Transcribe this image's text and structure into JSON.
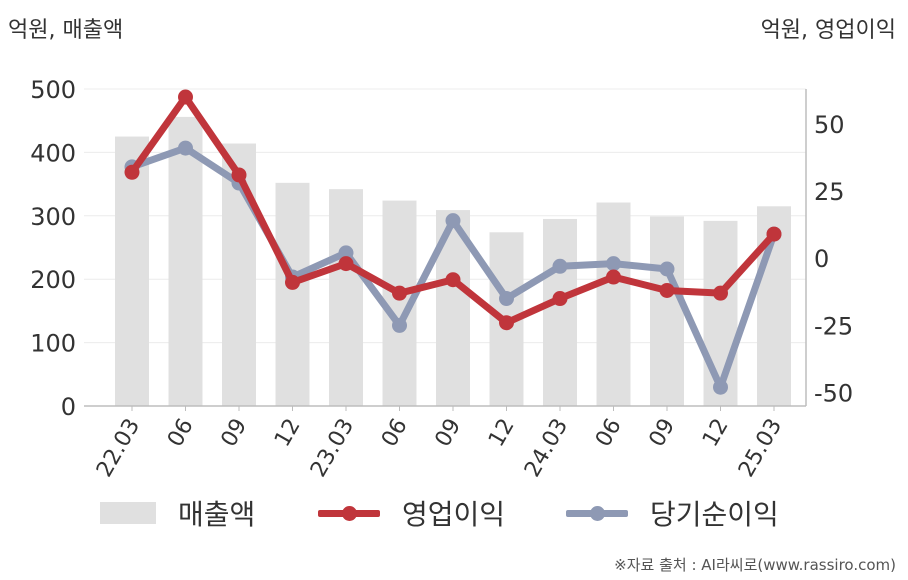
{
  "chart_data": {
    "type": "bar",
    "left_unit": "억원, 매출액",
    "right_unit": "억원, 영업이익",
    "categories": [
      "22.03",
      "06",
      "09",
      "12",
      "23.03",
      "06",
      "09",
      "12",
      "24.03",
      "06",
      "09",
      "12",
      "25.03"
    ],
    "bar_series": {
      "name": "매출액",
      "axis": "left",
      "color": "#e0e0e0",
      "values": [
        425,
        456,
        414,
        352,
        342,
        324,
        309,
        274,
        295,
        321,
        299,
        292,
        315
      ]
    },
    "line_series": [
      {
        "name": "영업이익",
        "axis": "right",
        "color": "#c0353b",
        "values": [
          32,
          60,
          31,
          -9,
          -2,
          -13,
          -8,
          -24,
          -15,
          -7,
          -12,
          -13,
          9
        ]
      },
      {
        "name": "당기순이익",
        "axis": "right",
        "color": "#8e99b4",
        "values": [
          34,
          41,
          28,
          -7,
          2,
          -25,
          14,
          -15,
          -3,
          -2,
          -4,
          -48,
          9
        ]
      }
    ],
    "left_axis": {
      "ylim": [
        0,
        500
      ],
      "ticks": [
        "0",
        "100",
        "200",
        "300",
        "400",
        "500"
      ]
    },
    "right_axis": {
      "ylim": [
        -55,
        63
      ],
      "ticks": [
        "-50",
        "-25",
        "0",
        "25",
        "50"
      ],
      "tick_values": [
        -50,
        -25,
        0,
        25,
        50
      ]
    },
    "grid": true,
    "legend": [
      "매출액",
      "영업이익",
      "당기순이익"
    ],
    "legend_position": "bottom",
    "source": "※자료 출처 : AI라씨로(www.rassiro.com)"
  }
}
